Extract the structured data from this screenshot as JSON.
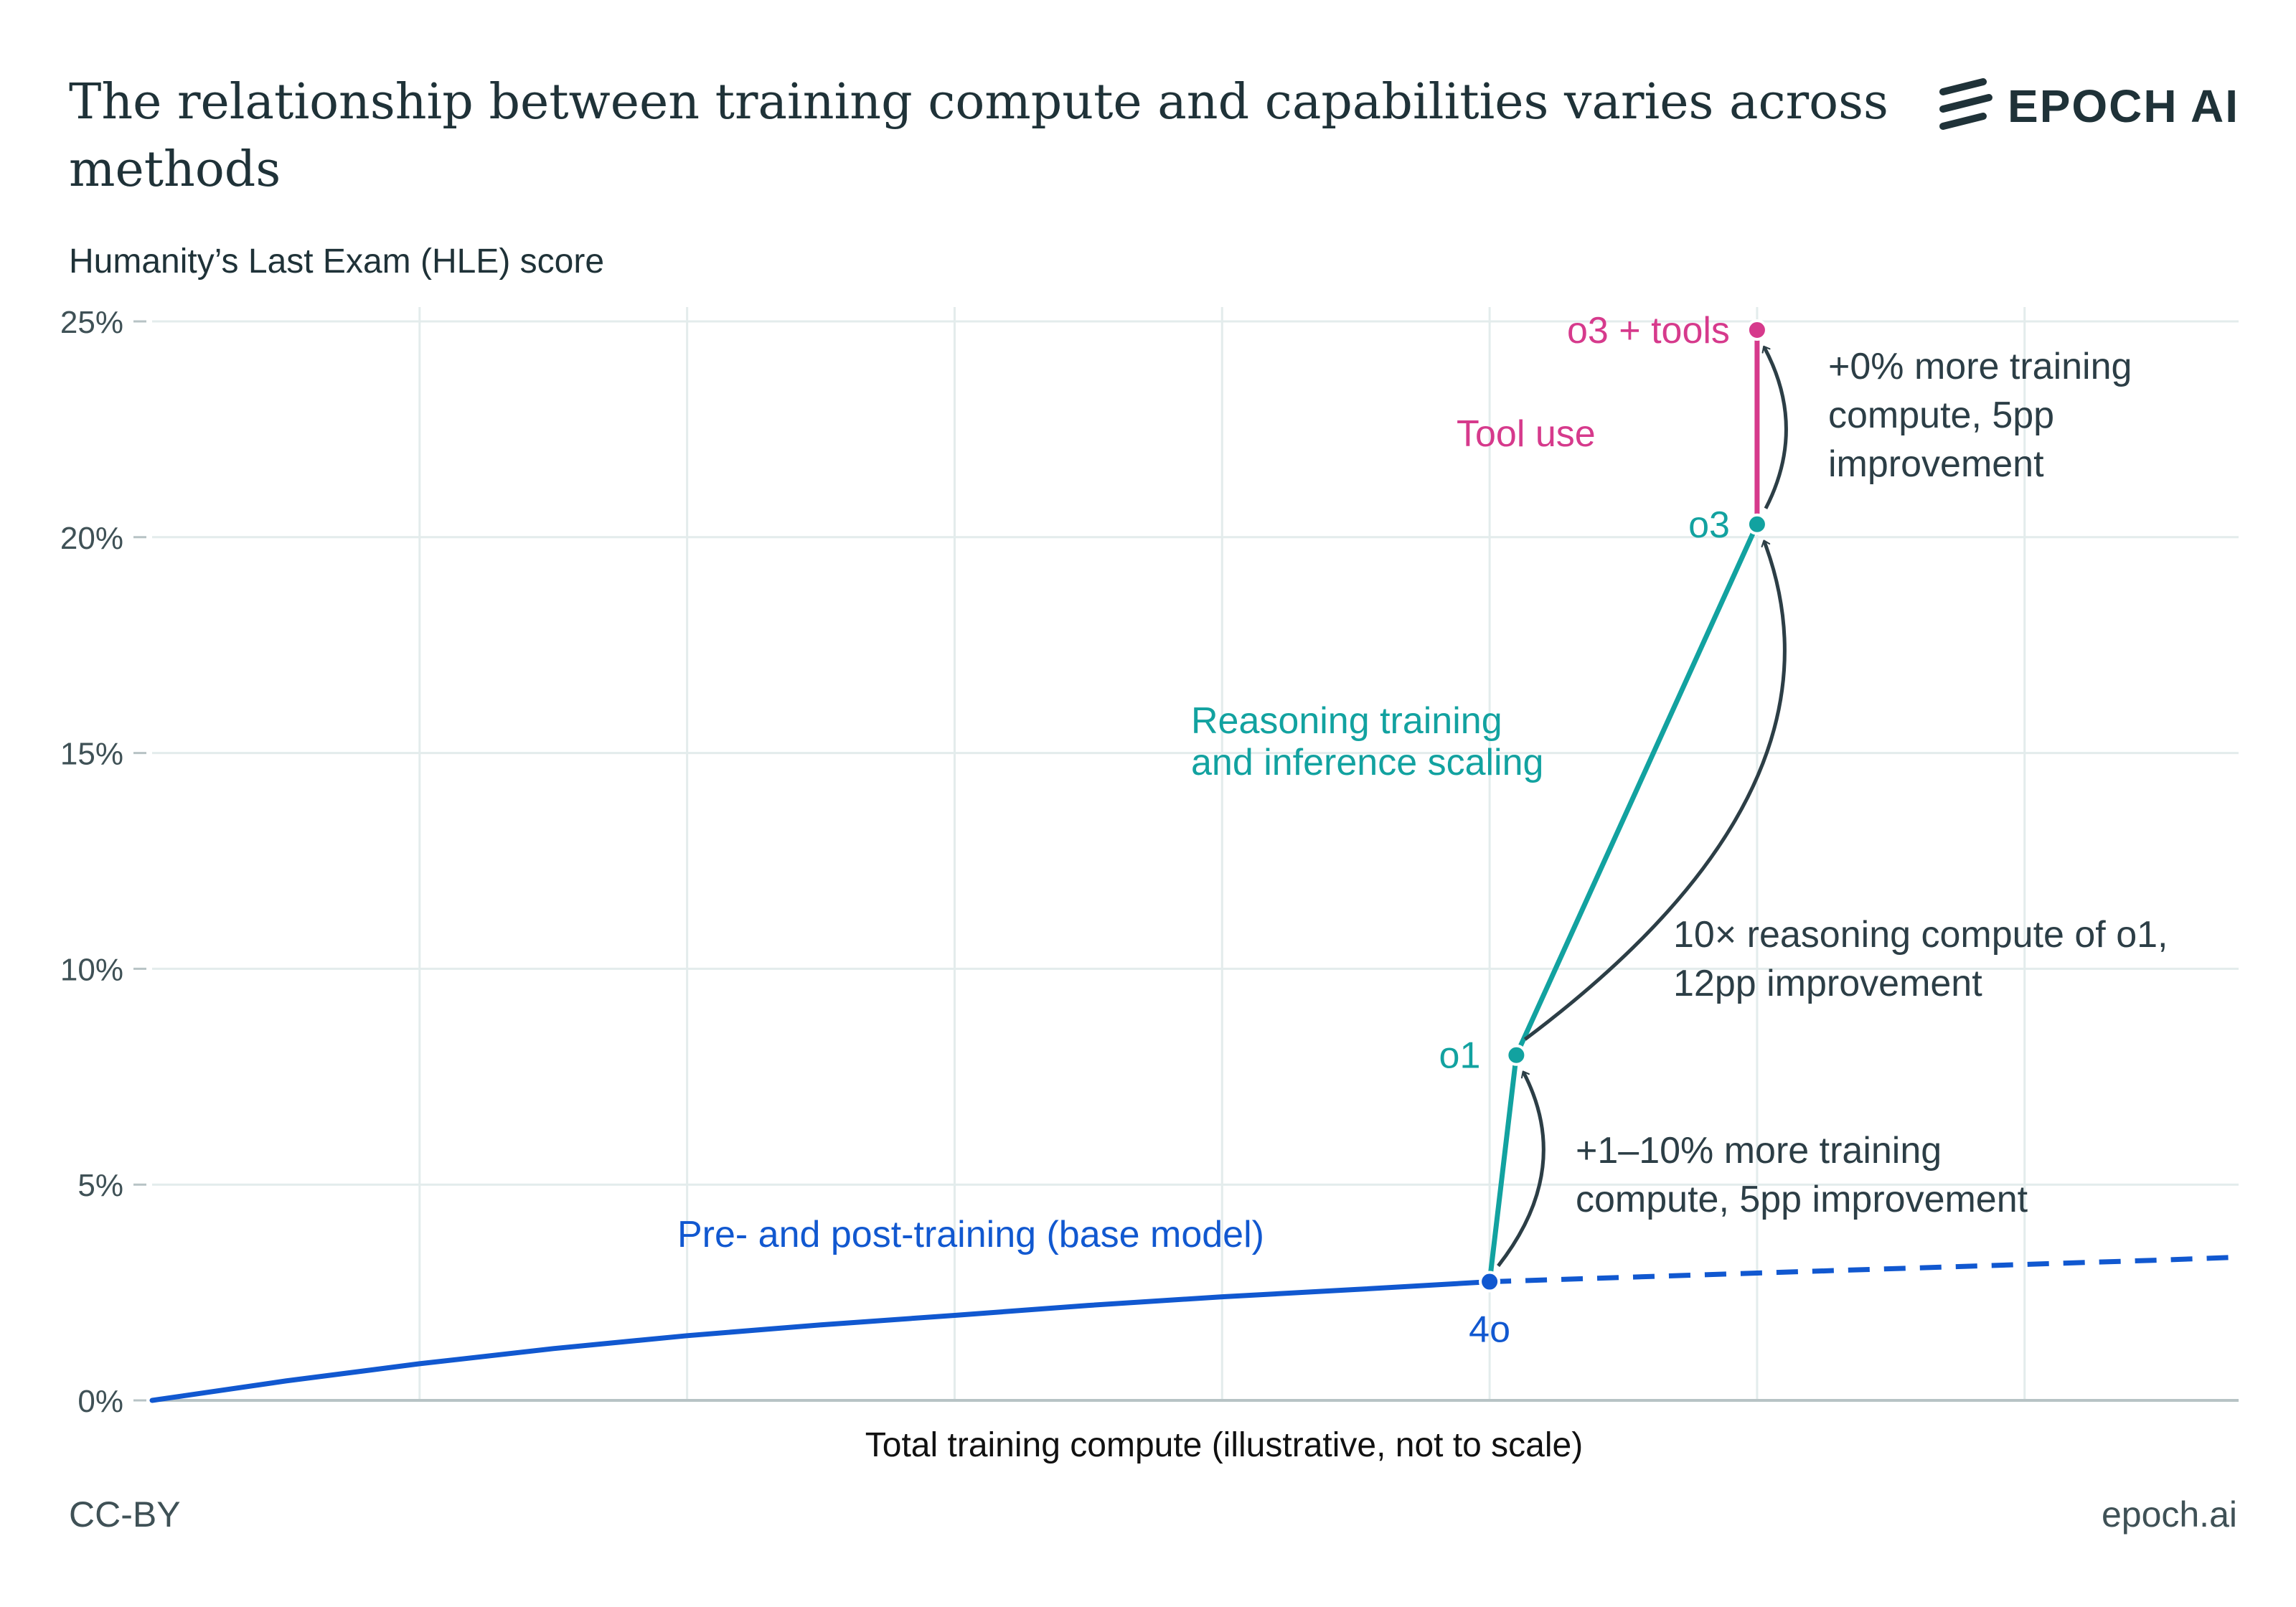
{
  "title": "The relationship between training compute and capabilities varies across methods",
  "logo": {
    "text": "EPOCH AI"
  },
  "footer": {
    "license": "CC-BY",
    "site": "epoch.ai"
  },
  "colors": {
    "base": "#1158d0",
    "reasoning": "#12a2a0",
    "tools": "#d63a8c",
    "annotation": "#2c3e46",
    "grid": "#e3ecec",
    "axis": "#b7c3c5"
  },
  "chart_data": {
    "type": "line",
    "title": "The relationship between training compute and capabilities varies across methods",
    "ylabel": "Humanity’s Last Exam (HLE) score",
    "xlabel": "Total training compute (illustrative, not to scale)",
    "xlim": [
      0,
      7.8
    ],
    "ylim": [
      0,
      25
    ],
    "yticks": [
      0,
      5,
      10,
      15,
      20,
      25
    ],
    "ytick_labels": [
      "0%",
      "5%",
      "10%",
      "15%",
      "20%",
      "25%"
    ],
    "xgrid": [
      1,
      2,
      3,
      4,
      5,
      6,
      7
    ],
    "series": [
      {
        "name": "Pre- and post-training (base model)",
        "color_key": "base",
        "x": [
          0,
          0.5,
          1,
          1.5,
          2,
          2.5,
          3,
          3.5,
          4,
          4.5,
          5
        ],
        "y": [
          0,
          0.45,
          0.85,
          1.2,
          1.5,
          1.75,
          1.97,
          2.2,
          2.4,
          2.57,
          2.75
        ],
        "dashed_extension": {
          "x": [
            5,
            5.5,
            6,
            6.5,
            7,
            7.5,
            7.8
          ],
          "y": [
            2.75,
            2.85,
            2.95,
            3.05,
            3.15,
            3.25,
            3.32
          ]
        }
      },
      {
        "name": "Reasoning training and inference scaling",
        "color_key": "reasoning",
        "x": [
          5,
          5.1,
          6
        ],
        "y": [
          2.75,
          8.0,
          20.3
        ]
      },
      {
        "name": "Tool use",
        "color_key": "tools",
        "x": [
          6,
          6
        ],
        "y": [
          20.3,
          24.8
        ]
      }
    ],
    "points": [
      {
        "label": "4o",
        "x": 5,
        "y": 2.75,
        "color_key": "base"
      },
      {
        "label": "o1",
        "x": 5.1,
        "y": 8.0,
        "color_key": "reasoning"
      },
      {
        "label": "o3",
        "x": 6,
        "y": 20.3,
        "color_key": "reasoning"
      },
      {
        "label": "o3 + tools",
        "x": 6,
        "y": 24.8,
        "color_key": "tools"
      }
    ],
    "series_labels": {
      "base": "Pre- and post-training (base model)",
      "reasoning": [
        "Reasoning training",
        "and inference scaling"
      ],
      "tools": "Tool use"
    },
    "annotations": [
      {
        "id": "4o-o1",
        "from": {
          "x": 5,
          "y": 2.75
        },
        "to": {
          "x": 5.1,
          "y": 8.0
        },
        "lines": [
          "+1–10% more training",
          "compute, 5pp improvement"
        ]
      },
      {
        "id": "o1-o3",
        "from": {
          "x": 5.1,
          "y": 8.0
        },
        "to": {
          "x": 6,
          "y": 20.3
        },
        "lines": [
          "10× reasoning compute of o1,",
          "12pp improvement"
        ]
      },
      {
        "id": "o3-tools",
        "from": {
          "x": 6,
          "y": 20.3
        },
        "to": {
          "x": 6,
          "y": 24.8
        },
        "lines": [
          "+0% more training",
          "compute, 5pp",
          "improvement"
        ]
      }
    ]
  }
}
